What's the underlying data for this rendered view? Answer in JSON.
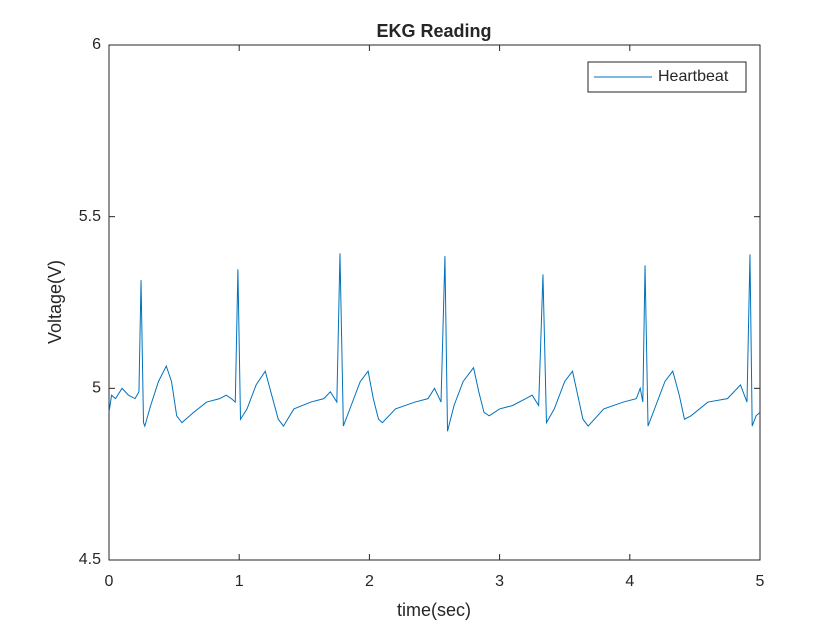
{
  "chart_data": {
    "type": "line",
    "title": "EKG Reading",
    "xlabel": "time(sec)",
    "ylabel": "Voltage(V)",
    "xlim": [
      0,
      5
    ],
    "ylim": [
      4.5,
      6
    ],
    "xticks": [
      0,
      1,
      2,
      3,
      4,
      5
    ],
    "yticks": [
      4.5,
      5,
      5.5,
      6
    ],
    "legend": "top-right",
    "grid": false,
    "x": [
      0,
      0.02,
      0.05,
      0.1,
      0.15,
      0.2,
      0.23,
      0.246,
      0.265,
      0.275,
      0.32,
      0.38,
      0.44,
      0.48,
      0.52,
      0.56,
      0.65,
      0.75,
      0.85,
      0.9,
      0.94,
      0.97,
      0.99,
      1.01,
      1.06,
      1.13,
      1.2,
      1.25,
      1.3,
      1.34,
      1.42,
      1.55,
      1.65,
      1.7,
      1.75,
      1.774,
      1.8,
      1.86,
      1.93,
      1.99,
      2.03,
      2.07,
      2.1,
      2.2,
      2.35,
      2.45,
      2.5,
      2.55,
      2.58,
      2.6,
      2.65,
      2.72,
      2.8,
      2.84,
      2.88,
      2.92,
      3.0,
      3.1,
      3.2,
      3.25,
      3.3,
      3.333,
      3.36,
      3.42,
      3.5,
      3.56,
      3.6,
      3.64,
      3.68,
      3.8,
      3.95,
      4.05,
      4.08,
      4.1,
      4.117,
      4.14,
      4.2,
      4.27,
      4.33,
      4.38,
      4.42,
      4.47,
      4.6,
      4.75,
      4.85,
      4.9,
      4.923,
      4.94,
      4.97,
      5.0
    ],
    "series": [
      {
        "name": "Heartbeat",
        "color": "#0072BD",
        "values": [
          4.93,
          4.98,
          4.97,
          5.0,
          4.98,
          4.97,
          4.99,
          5.315,
          4.9,
          4.89,
          4.95,
          5.02,
          5.065,
          5.02,
          4.92,
          4.9,
          4.93,
          4.96,
          4.97,
          4.98,
          4.97,
          4.96,
          5.347,
          4.91,
          4.94,
          5.01,
          5.05,
          4.98,
          4.91,
          4.89,
          4.94,
          4.96,
          4.97,
          4.99,
          4.96,
          5.393,
          4.89,
          4.95,
          5.02,
          5.05,
          4.97,
          4.91,
          4.9,
          4.94,
          4.96,
          4.97,
          5.0,
          4.96,
          5.385,
          4.875,
          4.95,
          5.02,
          5.06,
          4.99,
          4.93,
          4.92,
          4.94,
          4.95,
          4.97,
          4.98,
          4.95,
          5.332,
          4.9,
          4.94,
          5.02,
          5.05,
          4.98,
          4.91,
          4.89,
          4.94,
          4.96,
          4.97,
          5.0,
          4.96,
          5.358,
          4.89,
          4.95,
          5.02,
          5.05,
          4.98,
          4.91,
          4.92,
          4.96,
          4.97,
          5.01,
          4.96,
          5.39,
          4.89,
          4.92,
          4.93
        ]
      }
    ]
  }
}
